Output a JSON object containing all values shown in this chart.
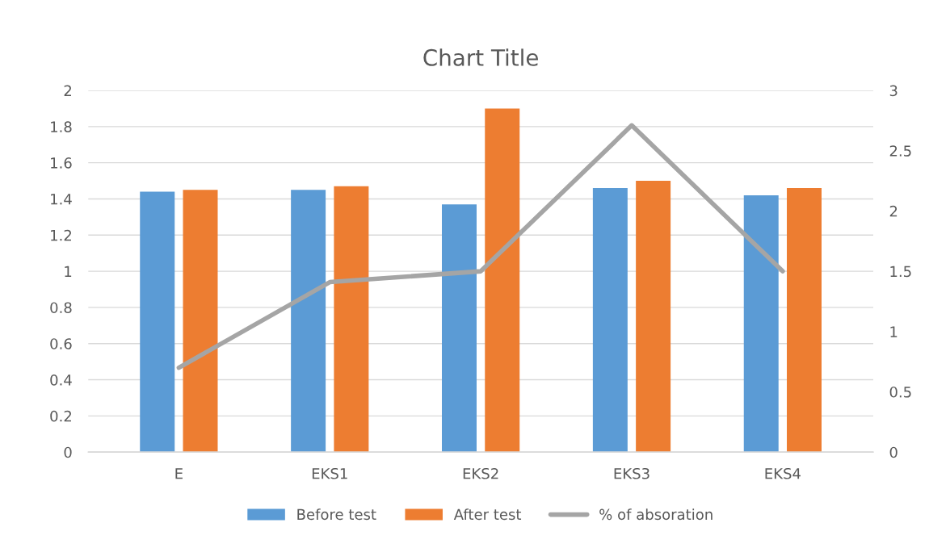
{
  "chart_data": {
    "type": "bar",
    "title": "Chart Title",
    "categories": [
      "E",
      "EKS1",
      "EKS2",
      "EKS3",
      "EKS4"
    ],
    "series": [
      {
        "name": "Before test",
        "color": "#5b9bd5",
        "values": [
          1.44,
          1.45,
          1.37,
          1.46,
          1.42
        ]
      },
      {
        "name": "After test",
        "color": "#ed7d31",
        "values": [
          1.45,
          1.47,
          1.9,
          1.5,
          1.46
        ]
      },
      {
        "name": "% of absoration",
        "color": "#a5a5a5",
        "type": "line",
        "axis": "y2",
        "values": [
          0.7,
          1.41,
          1.5,
          2.71,
          1.5
        ]
      }
    ],
    "ylim": [
      0,
      2
    ],
    "yticks": [
      0,
      0.2,
      0.4,
      0.6,
      0.8,
      1,
      1.2,
      1.4,
      1.6,
      1.8,
      2
    ],
    "y2lim": [
      0,
      3
    ],
    "y2ticks": [
      0,
      0.5,
      1,
      1.5,
      2,
      2.5,
      3
    ],
    "grid": "y",
    "legend": "bottom",
    "marker": "none",
    "line_style": "solid"
  }
}
